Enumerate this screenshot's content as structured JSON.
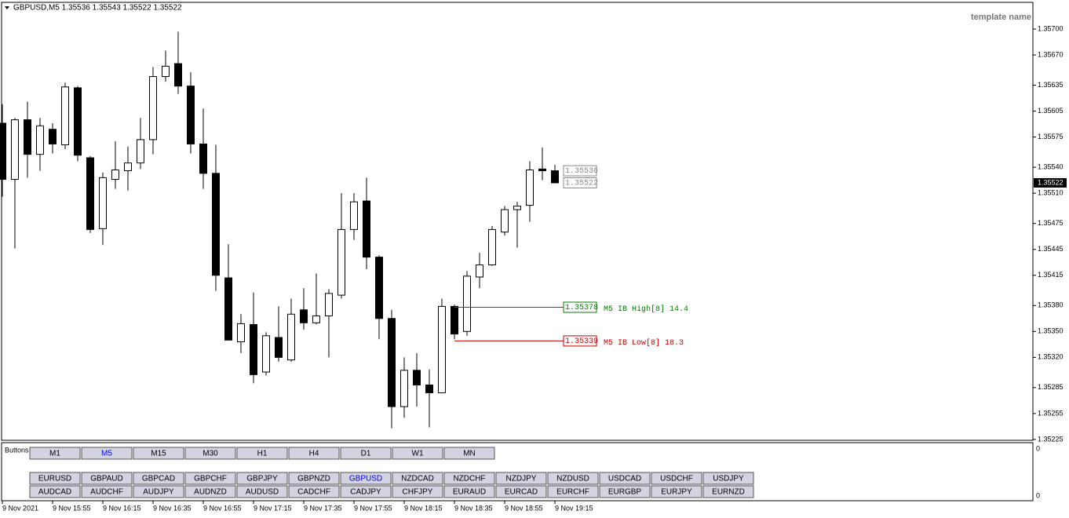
{
  "chart_data": {
    "type": "candlestick",
    "header": "GBPUSD,M5  1.35536 1.35543 1.35522 1.35522",
    "template_label": "template name",
    "open": [
      1.35591,
      1.35526,
      1.35595,
      1.35555,
      1.35584,
      1.35566,
      1.35632,
      1.35551,
      1.35469,
      1.35526,
      1.35536,
      1.35545,
      1.35572,
      1.35645,
      1.3566,
      1.35634,
      1.35567,
      1.35533,
      1.35412,
      1.35338,
      1.35358,
      1.35303,
      1.35343,
      1.35317,
      1.35375,
      1.3536,
      1.35368,
      1.35392,
      1.35468,
      1.35501,
      1.35436,
      1.35365,
      1.35263,
      1.35305,
      1.35288,
      1.35279,
      1.35379,
      1.3535,
      1.35413,
      1.35427,
      1.35465,
      1.35491,
      1.35496,
      1.35538,
      1.35536
    ],
    "high": [
      1.35613,
      1.35597,
      1.35616,
      1.35597,
      1.35591,
      1.35638,
      1.35634,
      1.35553,
      1.35534,
      1.3557,
      1.35564,
      1.35597,
      1.35656,
      1.35675,
      1.35697,
      1.3565,
      1.35608,
      1.35566,
      1.35451,
      1.3537,
      1.35395,
      1.35349,
      1.35379,
      1.35388,
      1.354,
      1.35417,
      1.35399,
      1.3551,
      1.3551,
      1.35528,
      1.35438,
      1.35375,
      1.3532,
      1.35325,
      1.35306,
      1.35388,
      1.35381,
      1.3542,
      1.35441,
      1.35472,
      1.35495,
      1.355,
      1.35547,
      1.35563,
      1.35543
    ],
    "low": [
      1.35506,
      1.35446,
      1.35528,
      1.35536,
      1.35556,
      1.35561,
      1.35547,
      1.35464,
      1.3545,
      1.35515,
      1.35513,
      1.35538,
      1.35555,
      1.35639,
      1.35625,
      1.35556,
      1.35515,
      1.35397,
      1.3534,
      1.35325,
      1.3529,
      1.35299,
      1.35315,
      1.35315,
      1.35352,
      1.35358,
      1.3532,
      1.35388,
      1.35456,
      1.35422,
      1.35341,
      1.35238,
      1.3525,
      1.35263,
      1.35239,
      1.35279,
      1.35341,
      1.35345,
      1.354,
      1.35426,
      1.35461,
      1.35447,
      1.35477,
      1.35525,
      1.35522
    ],
    "close": [
      1.35526,
      1.35595,
      1.35555,
      1.35588,
      1.35567,
      1.35633,
      1.35554,
      1.35468,
      1.35528,
      1.35537,
      1.35545,
      1.35572,
      1.35645,
      1.35657,
      1.35634,
      1.35567,
      1.35533,
      1.35415,
      1.3534,
      1.35359,
      1.353,
      1.35345,
      1.3532,
      1.3537,
      1.3536,
      1.35368,
      1.35394,
      1.35468,
      1.355,
      1.35436,
      1.35365,
      1.35263,
      1.35305,
      1.35288,
      1.35279,
      1.35379,
      1.35347,
      1.35414,
      1.35427,
      1.35468,
      1.35491,
      1.35495,
      1.35537,
      1.35536,
      1.35522
    ],
    "x_labels": [
      "9 Nov 2021",
      "9 Nov 15:55",
      "9 Nov 16:15",
      "9 Nov 16:35",
      "9 Nov 16:55",
      "9 Nov 17:15",
      "9 Nov 17:35",
      "9 Nov 17:55",
      "9 Nov 18:15",
      "9 Nov 18:35",
      "9 Nov 18:55",
      "9 Nov 19:15"
    ],
    "ylim": [
      1.35224,
      1.3573
    ],
    "yticks": [
      {
        "value": 1.357,
        "label": "1.35700"
      },
      {
        "value": 1.3567,
        "label": "1.35670"
      },
      1.35635,
      1.35605,
      1.35575,
      {
        "value": 1.3554,
        "label": "1.35540"
      },
      {
        "value": 1.3551,
        "label": "1.35510"
      },
      1.35475,
      1.35445,
      1.35415,
      {
        "value": 1.3538,
        "label": "1.35380"
      },
      {
        "value": 1.3535,
        "label": "1.35350"
      },
      {
        "value": 1.3532,
        "label": "1.35320"
      },
      1.35285,
      1.35255,
      1.35225
    ],
    "bullish_color": "#ffffff",
    "bearish_color": "#000000",
    "current_price": 1.35522,
    "price_tags": [
      1.35536,
      1.35522
    ],
    "levels": [
      {
        "value": 1.35378,
        "label": "M5 IB High[8] 14.4",
        "color": "#008000"
      },
      {
        "value": 1.35339,
        "label": "M5 IB Low[8] 18.3",
        "color": "#cc0000"
      }
    ]
  },
  "panel": {
    "label": "Buttons",
    "axis_labels": [
      0,
      0
    ],
    "timeframes": [
      "M1",
      "M5",
      "M15",
      "M30",
      "H1",
      "H4",
      "D1",
      "W1",
      "MN"
    ],
    "selected_timeframe": "M5",
    "pairs": [
      [
        "EURUSD",
        "GBPAUD",
        "GBPCAD",
        "GBPCHF",
        "GBPJPY",
        "GBPNZD",
        "GBPUSD",
        "NZDCAD",
        "NZDCHF",
        "NZDJPY",
        "NZDUSD",
        "USDCAD",
        "USDCHF",
        "USDJPY"
      ],
      [
        "AUDCAD",
        "AUDCHF",
        "AUDJPY",
        "AUDNZD",
        "AUDUSD",
        "CADCHF",
        "CADJPY",
        "CHFJPY",
        "EURAUD",
        "EURCAD",
        "EURCHF",
        "EURGBP",
        "EURJPY",
        "EURNZD"
      ]
    ],
    "selected_pair": "GBPUSD"
  }
}
